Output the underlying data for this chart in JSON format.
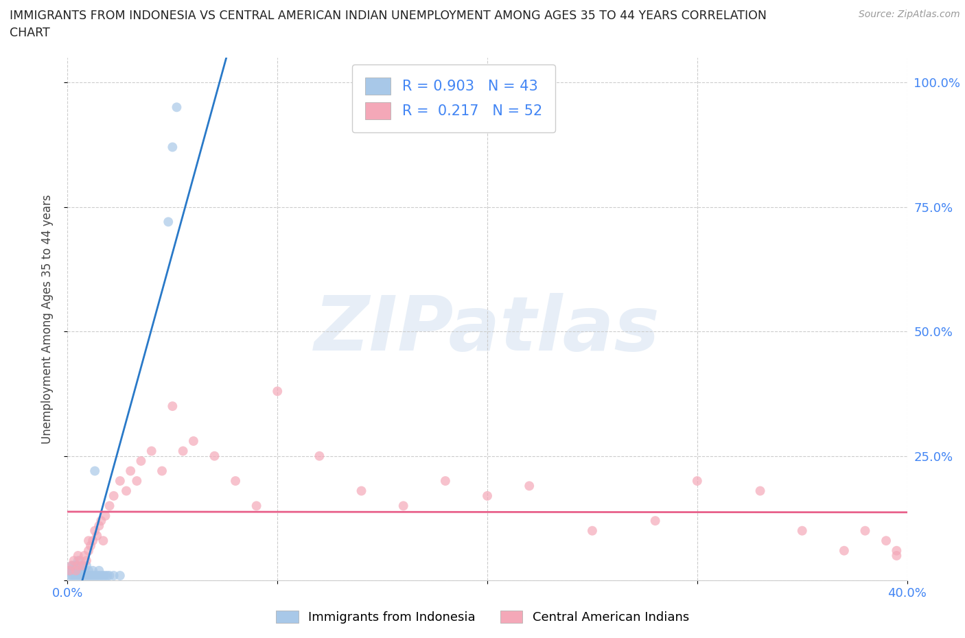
{
  "title_line1": "IMMIGRANTS FROM INDONESIA VS CENTRAL AMERICAN INDIAN UNEMPLOYMENT AMONG AGES 35 TO 44 YEARS CORRELATION",
  "title_line2": "CHART",
  "source": "Source: ZipAtlas.com",
  "ylabel": "Unemployment Among Ages 35 to 44 years",
  "legend_label1": "Immigrants from Indonesia",
  "legend_label2": "Central American Indians",
  "R1": 0.903,
  "N1": 43,
  "R2": 0.217,
  "N2": 52,
  "color1": "#a8c8e8",
  "color2": "#f4a8b8",
  "line_color1": "#2979c8",
  "line_color2": "#e8608a",
  "background_color": "#ffffff",
  "watermark": "ZIPatlas",
  "xlim": [
    0.0,
    0.4
  ],
  "ylim": [
    0.0,
    1.05
  ],
  "indo_x": [
    0.001,
    0.001,
    0.002,
    0.002,
    0.002,
    0.003,
    0.003,
    0.003,
    0.004,
    0.004,
    0.004,
    0.005,
    0.005,
    0.005,
    0.006,
    0.006,
    0.007,
    0.007,
    0.007,
    0.008,
    0.008,
    0.009,
    0.009,
    0.01,
    0.01,
    0.011,
    0.012,
    0.012,
    0.013,
    0.014,
    0.015,
    0.015,
    0.016,
    0.017,
    0.018,
    0.019,
    0.02,
    0.022,
    0.025,
    0.013,
    0.048,
    0.05,
    0.052
  ],
  "indo_y": [
    0.01,
    0.02,
    0.01,
    0.02,
    0.03,
    0.01,
    0.02,
    0.03,
    0.01,
    0.02,
    0.03,
    0.01,
    0.02,
    0.04,
    0.01,
    0.02,
    0.01,
    0.02,
    0.03,
    0.01,
    0.02,
    0.01,
    0.03,
    0.01,
    0.02,
    0.01,
    0.01,
    0.02,
    0.01,
    0.01,
    0.01,
    0.02,
    0.01,
    0.01,
    0.01,
    0.01,
    0.01,
    0.01,
    0.01,
    0.22,
    0.72,
    0.87,
    0.95
  ],
  "ca_x": [
    0.001,
    0.002,
    0.003,
    0.004,
    0.005,
    0.005,
    0.006,
    0.007,
    0.008,
    0.009,
    0.01,
    0.01,
    0.011,
    0.012,
    0.013,
    0.014,
    0.015,
    0.016,
    0.017,
    0.018,
    0.02,
    0.022,
    0.025,
    0.028,
    0.03,
    0.033,
    0.035,
    0.04,
    0.045,
    0.05,
    0.055,
    0.06,
    0.07,
    0.08,
    0.09,
    0.1,
    0.12,
    0.14,
    0.16,
    0.18,
    0.2,
    0.22,
    0.25,
    0.28,
    0.3,
    0.33,
    0.35,
    0.37,
    0.38,
    0.395,
    0.39,
    0.395
  ],
  "ca_y": [
    0.02,
    0.03,
    0.04,
    0.02,
    0.03,
    0.05,
    0.04,
    0.03,
    0.05,
    0.04,
    0.06,
    0.08,
    0.07,
    0.08,
    0.1,
    0.09,
    0.11,
    0.12,
    0.08,
    0.13,
    0.15,
    0.17,
    0.2,
    0.18,
    0.22,
    0.2,
    0.24,
    0.26,
    0.22,
    0.35,
    0.26,
    0.28,
    0.25,
    0.2,
    0.15,
    0.38,
    0.25,
    0.18,
    0.15,
    0.2,
    0.17,
    0.19,
    0.1,
    0.12,
    0.2,
    0.18,
    0.1,
    0.06,
    0.1,
    0.05,
    0.08,
    0.06
  ]
}
